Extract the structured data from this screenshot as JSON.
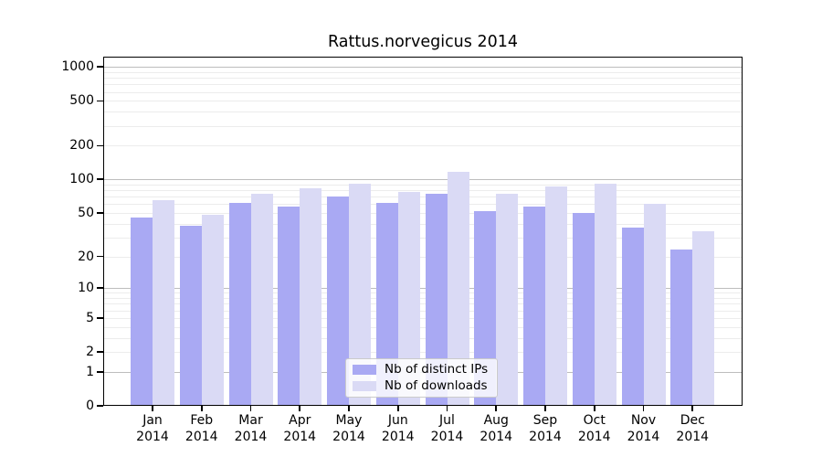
{
  "chart_data": {
    "type": "bar",
    "title": "Rattus.norvegicus 2014",
    "xlabel": "",
    "ylabel": "",
    "categories": [
      {
        "month": "Jan",
        "year": "2014"
      },
      {
        "month": "Feb",
        "year": "2014"
      },
      {
        "month": "Mar",
        "year": "2014"
      },
      {
        "month": "Apr",
        "year": "2014"
      },
      {
        "month": "May",
        "year": "2014"
      },
      {
        "month": "Jun",
        "year": "2014"
      },
      {
        "month": "Jul",
        "year": "2014"
      },
      {
        "month": "Aug",
        "year": "2014"
      },
      {
        "month": "Sep",
        "year": "2014"
      },
      {
        "month": "Oct",
        "year": "2014"
      },
      {
        "month": "Nov",
        "year": "2014"
      },
      {
        "month": "Dec",
        "year": "2014"
      }
    ],
    "series": [
      {
        "name": "Nb of distinct IPs",
        "color": "#a9a9f3",
        "values": [
          45,
          38,
          62,
          57,
          70,
          62,
          75,
          52,
          57,
          50,
          37,
          23
        ]
      },
      {
        "name": "Nb of downloads",
        "color": "#dadaf5",
        "values": [
          65,
          48,
          75,
          84,
          92,
          77,
          116,
          75,
          86,
          92,
          60,
          34
        ]
      }
    ],
    "y_ticks": [
      0,
      1,
      2,
      5,
      10,
      20,
      50,
      100,
      200,
      500,
      1000
    ],
    "y_scale": "log10(1+x)",
    "ylim": [
      0,
      1200
    ],
    "grid": "horizontal-log-minor",
    "legend_position": "lower-center-inside",
    "colors": {
      "axis": "#000000",
      "grid_minor": "#ececec",
      "grid_major": "#bdbdbd"
    }
  }
}
